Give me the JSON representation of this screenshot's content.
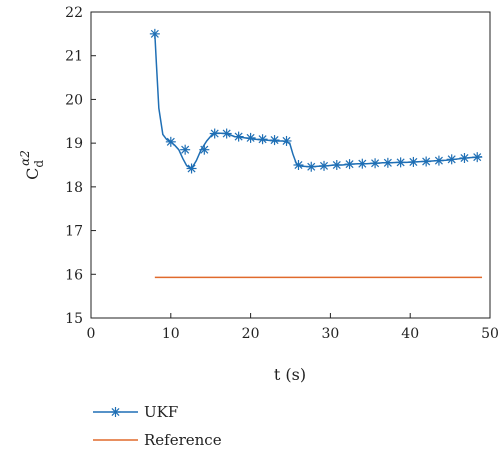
{
  "chart_data": {
    "type": "line",
    "xlabel": "t (s)",
    "ylabel": "C",
    "ylabel_subscript": "d",
    "ylabel_superscript": "α2",
    "xlim": [
      0,
      50
    ],
    "ylim": [
      15,
      22
    ],
    "xticks": [
      "0",
      "10",
      "20",
      "30",
      "40",
      "50"
    ],
    "yticks": [
      "15",
      "16",
      "17",
      "18",
      "19",
      "20",
      "21",
      "22"
    ],
    "grid": false,
    "legend_placement": "below-left",
    "series": [
      {
        "name": "UKF",
        "color": "#1f6fb5",
        "marker": "asterisk",
        "x": [
          8,
          8.2,
          8.5,
          9,
          9.5,
          10,
          10.5,
          11,
          11.5,
          12,
          12.6,
          13.2,
          13.8,
          14.5,
          15.2,
          15.8,
          17,
          18,
          19,
          20,
          21,
          22,
          23,
          24,
          24.9,
          25.3,
          25.8,
          26.5,
          27.5,
          28.5,
          29.5,
          30.5,
          31.5,
          32.5,
          33.5,
          34.5,
          35.5,
          36.5,
          37.5,
          38.5,
          39.5,
          40.5,
          41.5,
          42.5,
          43.5,
          44.5,
          45.5,
          46.5,
          47.5,
          48.5,
          49
        ],
        "y": [
          21.5,
          20.8,
          19.8,
          19.2,
          19.08,
          19.03,
          18.95,
          18.85,
          18.65,
          18.48,
          18.42,
          18.6,
          18.85,
          19.05,
          19.2,
          19.23,
          19.22,
          19.15,
          19.13,
          19.1,
          19.08,
          19.07,
          19.05,
          19.05,
          19.0,
          18.75,
          18.5,
          18.47,
          18.46,
          18.47,
          18.48,
          18.5,
          18.5,
          18.52,
          18.53,
          18.53,
          18.54,
          18.55,
          18.55,
          18.56,
          18.56,
          18.57,
          18.58,
          18.59,
          18.6,
          18.61,
          18.63,
          18.65,
          18.67,
          18.68,
          18.69
        ],
        "marker_x": [
          8,
          10,
          11.8,
          12.6,
          14.2,
          15.5,
          17,
          18.5,
          20,
          21.5,
          23,
          24.5,
          26,
          27.6,
          29.2,
          30.8,
          32.4,
          34,
          35.6,
          37.2,
          38.8,
          40.4,
          42,
          43.6,
          45.2,
          46.8,
          48.4
        ],
        "marker_y": [
          21.5,
          19.03,
          18.85,
          18.42,
          18.85,
          19.22,
          19.22,
          19.15,
          19.12,
          19.09,
          19.07,
          19.05,
          18.5,
          18.46,
          18.48,
          18.5,
          18.52,
          18.53,
          18.54,
          18.55,
          18.56,
          18.57,
          18.58,
          18.6,
          18.63,
          18.66,
          18.68
        ]
      },
      {
        "name": "Reference",
        "color": "#e06a2c",
        "x": [
          8,
          49
        ],
        "y": [
          15.93,
          15.93
        ]
      }
    ]
  }
}
